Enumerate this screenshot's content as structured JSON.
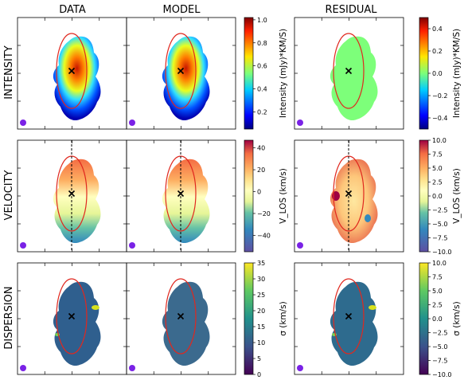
{
  "column_titles": [
    "DATA",
    "MODEL",
    "RESIDUAL"
  ],
  "row_titles": [
    "INTENSITY",
    "VELOCITY",
    "DISPERSION"
  ],
  "colors": {
    "ellipse": "#e0281f",
    "marker": "#000000",
    "beam": "#7a22e6",
    "frame": "#000000"
  },
  "chart_data": [
    {
      "type": "heatmap",
      "row": "INTENSITY",
      "colormap": "jet",
      "colorbar_label": "Intensity (mJy)*KM/S)",
      "colorbars": [
        {
          "panels": [
            "DATA",
            "MODEL"
          ],
          "range": [
            0.05,
            1.02
          ],
          "ticks": [
            1.0,
            0.8,
            0.6,
            0.4,
            0.2
          ],
          "tick_labels": [
            "1.0",
            "0.8",
            "0.6",
            "0.4",
            "0.2"
          ]
        },
        {
          "panels": [
            "RESIDUAL"
          ],
          "range": [
            -0.5,
            0.5
          ],
          "ticks": [
            0.4,
            0.2,
            0.0,
            -0.2,
            -0.4
          ],
          "tick_labels": [
            "0.4",
            "0.2",
            "0.0",
            "−0.2",
            "−0.4"
          ]
        }
      ],
      "panel_values": {
        "DATA": "peak ~1.0 near centre, falling to ~0.1 at edge",
        "MODEL": "peak ~1.0 near centre, falling to ~0.1 at edge",
        "RESIDUAL": 0.0
      },
      "center_marker": "x",
      "ellipse_overlay": true,
      "beam_marker": true
    },
    {
      "type": "heatmap",
      "row": "VELOCITY",
      "colormap": "Spectral_r",
      "colorbar_label": "V_LOS (km/s)",
      "colorbars": [
        {
          "panels": [
            "DATA",
            "MODEL"
          ],
          "range": [
            -55,
            47
          ],
          "ticks": [
            40,
            20,
            0,
            -20,
            -40
          ],
          "tick_labels": [
            "40",
            "20",
            "0",
            "−20",
            "−40"
          ]
        },
        {
          "panels": [
            "RESIDUAL"
          ],
          "range": [
            -10,
            10
          ],
          "ticks": [
            10,
            7.5,
            5,
            2.5,
            0,
            -2.5,
            -5,
            -7.5,
            -10
          ],
          "tick_labels": [
            "10.0",
            "7.5",
            "5.0",
            "2.5",
            "0.0",
            "−2.5",
            "−5.0",
            "−7.5",
            "−10.0"
          ]
        }
      ],
      "panel_values": {
        "DATA": "gradient ~+40 (top) to ~-45 (bottom)",
        "MODEL": "gradient ~+40 (top) to ~-45 (bottom)",
        "RESIDUAL": "scatter within ±10"
      },
      "center_marker": "x",
      "major_axis_line": "dashed",
      "ellipse_overlay": true,
      "beam_marker": true
    },
    {
      "type": "heatmap",
      "row": "DISPERSION",
      "colormap": "viridis",
      "colorbar_label": "σ (km/s)",
      "colorbars": [
        {
          "panels": [
            "DATA",
            "MODEL"
          ],
          "range": [
            0,
            35
          ],
          "ticks": [
            35,
            30,
            25,
            20,
            15,
            10,
            5,
            0
          ],
          "tick_labels": [
            "35",
            "30",
            "25",
            "20",
            "15",
            "10",
            "5",
            "0"
          ]
        },
        {
          "panels": [
            "RESIDUAL"
          ],
          "range": [
            -10,
            10
          ],
          "ticks": [
            10,
            7.5,
            5,
            2.5,
            0,
            -2.5,
            -5,
            -7.5,
            -10
          ],
          "tick_labels": [
            "10.0",
            "7.5",
            "5.0",
            "2.5",
            "0.0",
            "−2.5",
            "−5.0",
            "−7.5",
            "−10.0"
          ]
        }
      ],
      "panel_values": {
        "DATA": "mostly ~12, patches up to ~35",
        "MODEL": 13,
        "RESIDUAL": "mostly ~0, scattered -10 to +10"
      },
      "center_marker": "x",
      "ellipse_overlay": true,
      "beam_marker": true
    }
  ]
}
